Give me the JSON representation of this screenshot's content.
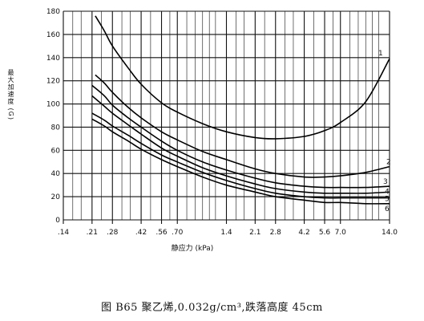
{
  "chart_data": {
    "type": "line",
    "xlabel": "静应力 (kPa)",
    "ylabel": "最大加速度 (G)",
    "xscale": "log",
    "xlim": [
      0.14,
      14.0
    ],
    "ylim": [
      0,
      180
    ],
    "x_ticks": [
      ".14",
      ".21",
      ".28",
      ".42",
      ".56",
      ".70",
      "1.4",
      "2.1",
      "2.8",
      "4.2",
      "5.6",
      "7.0",
      "14.0"
    ],
    "x_tick_values": [
      0.14,
      0.21,
      0.28,
      0.42,
      0.56,
      0.7,
      1.4,
      2.1,
      2.8,
      4.2,
      5.6,
      7.0,
      14.0
    ],
    "y_ticks": [
      "0",
      "20",
      "40",
      "60",
      "80",
      "100",
      "120",
      "140",
      "160",
      "180"
    ],
    "y_tick_values": [
      0,
      20,
      40,
      60,
      80,
      100,
      120,
      140,
      160,
      180
    ],
    "grid": true,
    "series": [
      {
        "name": "1",
        "x": [
          0.22,
          0.25,
          0.28,
          0.35,
          0.42,
          0.56,
          0.7,
          1.0,
          1.4,
          2.1,
          2.8,
          4.2,
          5.6,
          7.0,
          10.0,
          14.0
        ],
        "y": [
          176,
          163,
          150,
          131,
          117,
          101,
          93,
          83,
          76,
          71,
          70,
          72,
          77,
          84,
          102,
          139
        ]
      },
      {
        "name": "2",
        "x": [
          0.22,
          0.25,
          0.28,
          0.35,
          0.42,
          0.56,
          0.7,
          1.0,
          1.4,
          2.1,
          2.8,
          4.2,
          5.6,
          7.0,
          10.0,
          14.0
        ],
        "y": [
          125,
          118,
          110,
          97,
          88,
          76,
          69,
          59,
          52,
          44,
          40,
          37,
          37,
          38,
          41,
          46
        ]
      },
      {
        "name": "3",
        "x": [
          0.21,
          0.25,
          0.28,
          0.35,
          0.42,
          0.56,
          0.7,
          1.0,
          1.4,
          2.1,
          2.8,
          4.2,
          5.6,
          7.0,
          10.0,
          14.0
        ],
        "y": [
          116,
          107,
          99,
          88,
          80,
          68,
          60,
          50,
          43,
          36,
          32,
          29,
          28,
          28,
          28,
          29
        ]
      },
      {
        "name": "4",
        "x": [
          0.21,
          0.25,
          0.28,
          0.35,
          0.42,
          0.56,
          0.7,
          1.0,
          1.4,
          2.1,
          2.8,
          4.2,
          5.6,
          7.0,
          10.0,
          14.0
        ],
        "y": [
          107,
          98,
          92,
          82,
          74,
          62,
          55,
          45,
          38,
          31,
          27,
          24,
          23,
          23,
          23,
          24
        ]
      },
      {
        "name": "5",
        "x": [
          0.21,
          0.25,
          0.28,
          0.35,
          0.42,
          0.56,
          0.7,
          1.0,
          1.4,
          2.1,
          2.8,
          4.2,
          5.6,
          7.0,
          10.0,
          14.0
        ],
        "y": [
          92,
          86,
          81,
          73,
          66,
          56,
          50,
          41,
          34,
          27,
          23,
          20,
          19,
          19,
          19,
          19
        ]
      },
      {
        "name": "6",
        "x": [
          0.21,
          0.25,
          0.28,
          0.35,
          0.42,
          0.56,
          0.7,
          1.0,
          1.4,
          2.1,
          2.8,
          4.2,
          5.6,
          7.0,
          10.0,
          14.0
        ],
        "y": [
          87,
          81,
          76,
          68,
          61,
          52,
          46,
          37,
          30,
          24,
          20,
          17,
          15,
          15,
          14,
          14
        ]
      }
    ]
  },
  "caption": "图 B65   聚乙烯,0.032g/cm³,跌落高度 45cm"
}
